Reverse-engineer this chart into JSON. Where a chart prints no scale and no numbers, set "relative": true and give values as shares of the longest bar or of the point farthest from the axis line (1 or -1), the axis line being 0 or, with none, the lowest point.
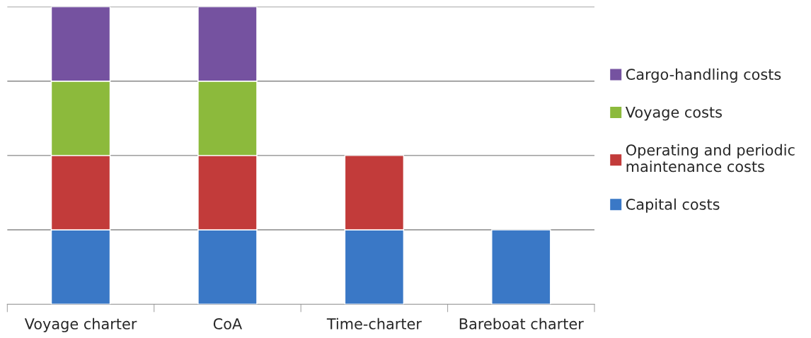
{
  "chart_data": {
    "type": "bar",
    "stacked": true,
    "relative": true,
    "grid": "y",
    "legend": "right",
    "categories": [
      "Voyage charter",
      "CoA",
      "Time-charter",
      "Bareboat charter"
    ],
    "series": [
      {
        "name": "Capital costs",
        "color": "#3a78c6",
        "values": [
          0.25,
          0.25,
          0.25,
          0.25
        ]
      },
      {
        "name": "Operating and periodic maintenance costs",
        "color": "#c23b3a",
        "values": [
          0.25,
          0.25,
          0.25,
          null
        ]
      },
      {
        "name": "Voyage costs",
        "color": "#8cba3c",
        "values": [
          0.25,
          0.25,
          null,
          null
        ]
      },
      {
        "name": "Cargo-handling costs",
        "color": "#7552a0",
        "values": [
          0.25,
          0.25,
          null,
          null
        ]
      }
    ]
  }
}
